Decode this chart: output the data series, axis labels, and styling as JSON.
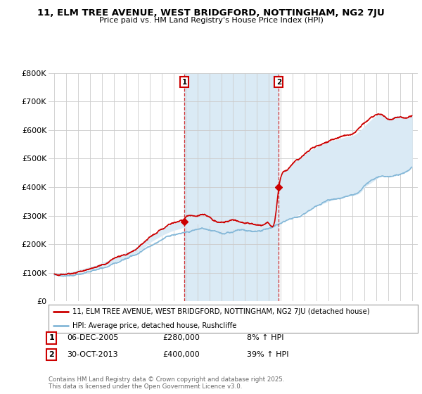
{
  "title1": "11, ELM TREE AVENUE, WEST BRIDGFORD, NOTTINGHAM, NG2 7JU",
  "title2": "Price paid vs. HM Land Registry's House Price Index (HPI)",
  "legend_line1": "11, ELM TREE AVENUE, WEST BRIDGFORD, NOTTINGHAM, NG2 7JU (detached house)",
  "legend_line2": "HPI: Average price, detached house, Rushcliffe",
  "marker1_date": "06-DEC-2005",
  "marker1_price": "£280,000",
  "marker1_hpi": "8% ↑ HPI",
  "marker1_year": 2005.92,
  "marker1_value": 280000,
  "marker2_date": "30-OCT-2013",
  "marker2_price": "£400,000",
  "marker2_hpi": "39% ↑ HPI",
  "marker2_year": 2013.83,
  "marker2_value": 400000,
  "copyright": "Contains HM Land Registry data © Crown copyright and database right 2025.\nThis data is licensed under the Open Government Licence v3.0.",
  "line_color_red": "#cc0000",
  "line_color_blue": "#85b8d8",
  "fill_color": "#daeaf5",
  "marker_box_color": "#cc0000",
  "grid_color": "#cccccc",
  "bg_color": "#ffffff",
  "ylim": [
    0,
    800000
  ],
  "yticks": [
    0,
    100000,
    200000,
    300000,
    400000,
    500000,
    600000,
    700000,
    800000
  ],
  "ytick_labels": [
    "£0",
    "£100K",
    "£200K",
    "£300K",
    "£400K",
    "£500K",
    "£600K",
    "£700K",
    "£800K"
  ],
  "xlim": [
    1994.5,
    2025.5
  ],
  "xticks": [
    1995,
    1996,
    1997,
    1998,
    1999,
    2000,
    2001,
    2002,
    2003,
    2004,
    2005,
    2006,
    2007,
    2008,
    2009,
    2010,
    2011,
    2012,
    2013,
    2014,
    2015,
    2016,
    2017,
    2018,
    2019,
    2020,
    2021,
    2022,
    2023,
    2024,
    2025
  ]
}
